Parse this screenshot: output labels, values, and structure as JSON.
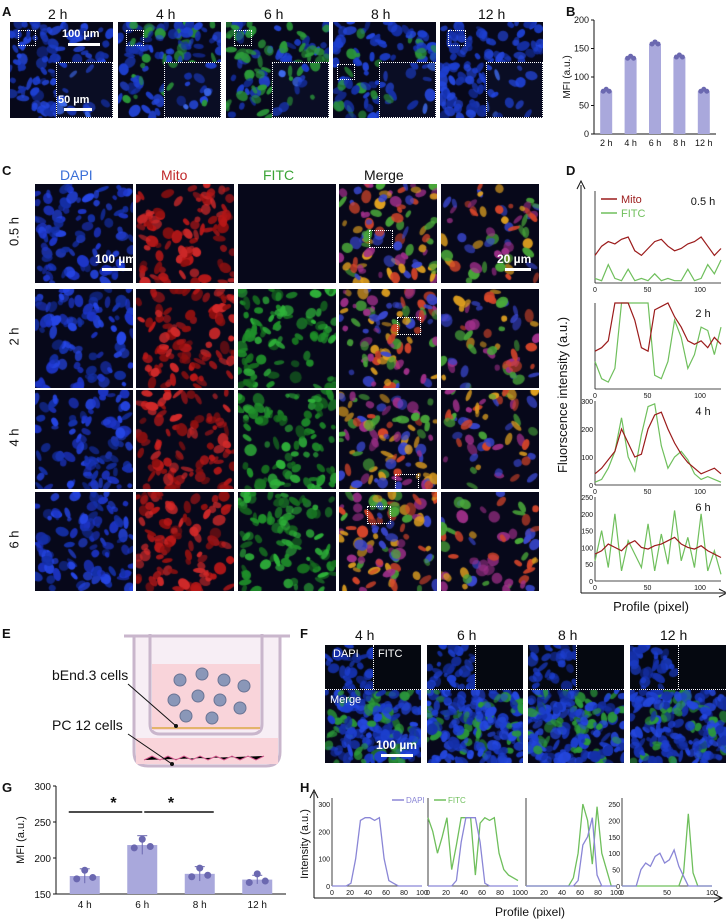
{
  "panels": {
    "A": "A",
    "B": "B",
    "C": "C",
    "D": "D",
    "E": "E",
    "F": "F",
    "G": "G",
    "H": "H"
  },
  "panelA": {
    "times": [
      "2 h",
      "4 h",
      "6 h",
      "8 h",
      "12 h"
    ],
    "scale_main": "100 µm",
    "scale_inset": "50 µm"
  },
  "panelC": {
    "columns": [
      "DAPI",
      "Mito",
      "FITC",
      "Merge"
    ],
    "column_colors": [
      "#3a6fd8",
      "#c0282a",
      "#3aa335",
      "#111111"
    ],
    "rows": [
      "0.5 h",
      "2 h",
      "4 h",
      "6 h"
    ],
    "scale_main": "100 µm",
    "scale_inset": "20 µm"
  },
  "panelE": {
    "label_top": "bEnd.3 cells",
    "label_bottom": "PC 12 cells"
  },
  "panelF": {
    "times": [
      "4 h",
      "6 h",
      "8 h",
      "12 h"
    ],
    "dapi": "DAPI",
    "fitc": "FITC",
    "merge": "Merge",
    "scale": "100 µm"
  },
  "chart_data": [
    {
      "id": "B",
      "type": "bar",
      "categories": [
        "2 h",
        "4 h",
        "6 h",
        "8 h",
        "12 h"
      ],
      "values": [
        75,
        133,
        158,
        135,
        75
      ],
      "ylabel": "MFI (a.u.)",
      "ylim": [
        0,
        200
      ],
      "yticks": [
        0,
        50,
        100,
        150,
        200
      ],
      "color": "#a9a8dc"
    },
    {
      "id": "D",
      "type": "line",
      "xlabel": "Profile (pixel)",
      "ylabel": "Fluorscence intensity (a.u.)",
      "legend": [
        {
          "name": "Mito",
          "color": "#9b1b1b"
        },
        {
          "name": "FITC",
          "color": "#6fbf5c"
        }
      ],
      "subplots": [
        {
          "time": "0.5 h",
          "xticks": [
            0,
            50,
            100
          ],
          "yticks": [],
          "ylim": [
            0,
            200
          ]
        },
        {
          "time": "2 h",
          "xticks": [
            0,
            50,
            100
          ],
          "yticks": [],
          "ylim": [
            0,
            250
          ]
        },
        {
          "time": "4 h",
          "xticks": [
            0,
            50,
            100
          ],
          "yticks": [
            0,
            100,
            200,
            300
          ],
          "ylim": [
            0,
            300
          ]
        },
        {
          "time": "6 h",
          "xticks": [
            0,
            50,
            100
          ],
          "yticks": [
            0,
            50,
            100,
            150,
            200,
            250
          ],
          "ylim": [
            0,
            250
          ]
        }
      ]
    },
    {
      "id": "G",
      "type": "bar",
      "categories": [
        "4 h",
        "6 h",
        "8 h",
        "12 h"
      ],
      "values": [
        175,
        218,
        178,
        170
      ],
      "errors": [
        10,
        13,
        10,
        6
      ],
      "ylabel": "MFI (a.u.)",
      "ylim": [
        150,
        300
      ],
      "yticks": [
        150,
        200,
        250,
        300
      ],
      "significance": [
        "*",
        "*"
      ],
      "color": "#a9a8dc"
    },
    {
      "id": "H",
      "type": "line",
      "xlabel": "Profile (pixel)",
      "ylabel": "Intensity (a.u.)",
      "legend": [
        {
          "name": "DAPI",
          "color": "#8a86d6"
        },
        {
          "name": "FITC",
          "color": "#6fbf5c"
        }
      ],
      "subplots": [
        {
          "xticks": [
            0,
            20,
            40,
            60,
            80,
            100
          ],
          "yticks": [
            0,
            100,
            200,
            300
          ],
          "ylim": [
            0,
            300
          ]
        },
        {
          "xticks": [
            0,
            20,
            40,
            60,
            80,
            100
          ]
        },
        {
          "xticks": [
            0,
            20,
            40,
            60,
            80,
            100
          ]
        },
        {
          "xticks": [
            0,
            50,
            100
          ],
          "yticks": [
            0,
            50,
            100,
            150,
            200,
            250
          ],
          "ylim": [
            0,
            250
          ]
        }
      ]
    }
  ]
}
